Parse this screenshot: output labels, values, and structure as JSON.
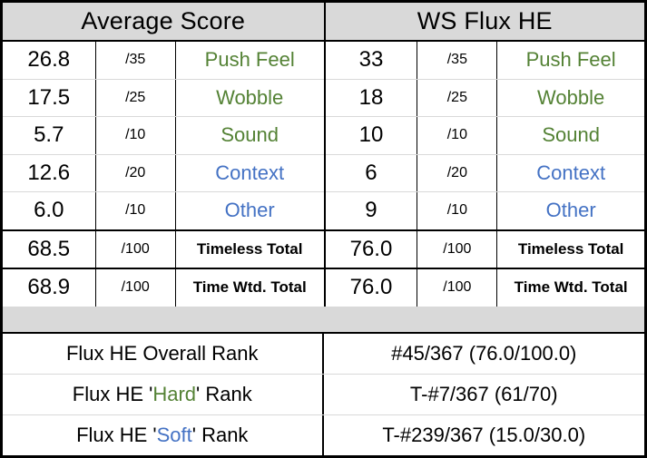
{
  "colors": {
    "accent_green": "#548235",
    "accent_blue": "#4472C4",
    "header_bg": "#D9D9D9",
    "divider": "#D9D9D9"
  },
  "columns": [
    {
      "header": "Average Score",
      "scores": [
        {
          "value": "26.8",
          "max": "/35",
          "label": "Push Feel"
        },
        {
          "value": "17.5",
          "max": "/25",
          "label": "Wobble"
        },
        {
          "value": "5.7",
          "max": "/10",
          "label": "Sound"
        },
        {
          "value": "12.6",
          "max": "/20",
          "label": "Context"
        },
        {
          "value": "6.0",
          "max": "/10",
          "label": "Other"
        }
      ],
      "totals": [
        {
          "value": "68.5",
          "max": "/100",
          "label": "Timeless Total"
        },
        {
          "value": "68.9",
          "max": "/100",
          "label": "Time Wtd. Total"
        }
      ]
    },
    {
      "header": "WS Flux HE",
      "scores": [
        {
          "value": "33",
          "max": "/35",
          "label": "Push Feel"
        },
        {
          "value": "18",
          "max": "/25",
          "label": "Wobble"
        },
        {
          "value": "10",
          "max": "/10",
          "label": "Sound"
        },
        {
          "value": "6",
          "max": "/20",
          "label": "Context"
        },
        {
          "value": "9",
          "max": "/10",
          "label": "Other"
        }
      ],
      "totals": [
        {
          "value": "76.0",
          "max": "/100",
          "label": "Timeless Total"
        },
        {
          "value": "76.0",
          "max": "/100",
          "label": "Time Wtd. Total"
        }
      ]
    }
  ],
  "ranks": [
    {
      "prefix": "Flux HE Overall Rank",
      "word": "",
      "suffix": "",
      "value": "#45/367 (76.0/100.0)"
    },
    {
      "prefix": "Flux HE '",
      "word": "Hard",
      "suffix": "' Rank",
      "value": "T-#7/367 (61/70)"
    },
    {
      "prefix": "Flux HE '",
      "word": "Soft",
      "suffix": "' Rank",
      "value": "T-#239/367 (15.0/30.0)"
    }
  ],
  "chart_data": {
    "type": "table",
    "title": "Switch scorecard: WS Flux HE vs Average Score",
    "columns": [
      "Average Score",
      "WS Flux HE"
    ],
    "rows": [
      {
        "label": "Push Feel",
        "max": 35,
        "average_score": 26.8,
        "ws_flux_he": 33
      },
      {
        "label": "Wobble",
        "max": 25,
        "average_score": 17.5,
        "ws_flux_he": 18
      },
      {
        "label": "Sound",
        "max": 10,
        "average_score": 5.7,
        "ws_flux_he": 10
      },
      {
        "label": "Context",
        "max": 20,
        "average_score": 12.6,
        "ws_flux_he": 6
      },
      {
        "label": "Other",
        "max": 10,
        "average_score": 6.0,
        "ws_flux_he": 9
      },
      {
        "label": "Timeless Total",
        "max": 100,
        "average_score": 68.5,
        "ws_flux_he": 76.0
      },
      {
        "label": "Time Wtd. Total",
        "max": 100,
        "average_score": 68.9,
        "ws_flux_he": 76.0
      }
    ],
    "ranks": [
      {
        "label": "Flux HE Overall Rank",
        "value": "#45/367 (76.0/100.0)"
      },
      {
        "label": "Flux HE 'Hard' Rank",
        "value": "T-#7/367 (61/70)"
      },
      {
        "label": "Flux HE 'Soft' Rank",
        "value": "T-#239/367 (15.0/30.0)"
      }
    ]
  }
}
